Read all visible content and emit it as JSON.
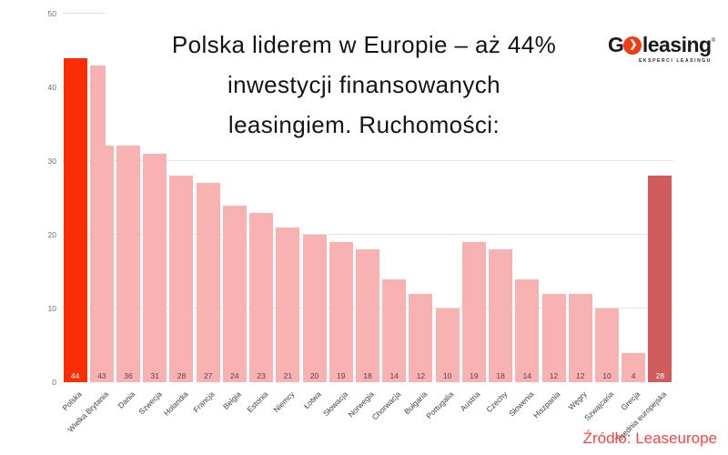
{
  "title": {
    "lines": [
      "Polska liderem w Europie – aż 44%",
      "inwestycji finansowanych",
      "leasingiem. Ruchomości:"
    ]
  },
  "logo": {
    "g": "G",
    "chevron": "❯",
    "word": "leasing",
    "registered": "®",
    "tagline": "EKSPERCI LEASINGU"
  },
  "source": {
    "label": "Źródło: Leaseurope"
  },
  "colors": {
    "bar_highlight": "#fb2d04",
    "bar_normal": "#f9b2b2",
    "bar_average": "#d25c5c",
    "value_on_light": "#5f4242",
    "value_on_dark": "#ffffff",
    "grid": "#e4e4e4",
    "axis_text": "#6e6e6e",
    "category_text": "#3f3f3f",
    "source_text": "#fb4545"
  },
  "chart_data": {
    "type": "bar",
    "title": "Polska liderem w Europie – aż 44% inwestycji finansowanych leasingiem. Ruchomości:",
    "categories": [
      "Polska",
      "Wielka Brytania",
      "Dania",
      "Szwecja",
      "Holandia",
      "Francja",
      "Belgia",
      "Estonia",
      "Niemcy",
      "Łotwa",
      "Słowacja",
      "Norwegia",
      "Chorwacja",
      "Bułgaria",
      "Portugalia",
      "Austria",
      "Czechy",
      "Słowenia",
      "Hiszpania",
      "Węgry",
      "Szwajcaria",
      "Grecja",
      "Średnia europejska"
    ],
    "values": [
      44,
      43,
      36,
      31,
      28,
      27,
      24,
      23,
      21,
      20,
      19,
      18,
      14,
      12,
      10,
      19,
      18,
      14,
      12,
      12,
      10,
      4,
      28
    ],
    "highlight_index": 0,
    "average_index": 22,
    "value_labels": "inside-bottom",
    "xlabel": "",
    "ylabel": "",
    "ylim": [
      0,
      50
    ],
    "yticks": [
      0,
      10,
      20,
      30,
      40,
      50
    ],
    "grid": "horizontal",
    "legend": "none",
    "source": "Źródło: Leaseurope"
  }
}
